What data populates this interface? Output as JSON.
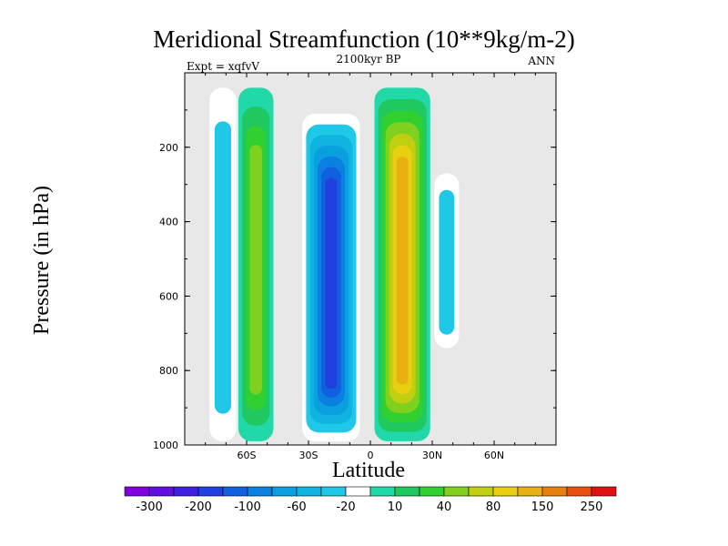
{
  "chart_data": {
    "type": "contour",
    "title": "Meridional Streamfunction (10**9kg/m-2)",
    "subtitle": "2100kyr BP",
    "left_label": "Expt = xqfvV",
    "right_label": "ANN",
    "xlabel": "Latitude",
    "ylabel": "Pressure (in hPa)",
    "xlim": [
      -90,
      90
    ],
    "ylim": [
      1000,
      0
    ],
    "xticks": [
      {
        "value": -60,
        "label": "60S"
      },
      {
        "value": -30,
        "label": "30S"
      },
      {
        "value": 0,
        "label": "0"
      },
      {
        "value": 30,
        "label": "30N"
      },
      {
        "value": 60,
        "label": "60N"
      }
    ],
    "yticks": [
      {
        "value": 200,
        "label": "200"
      },
      {
        "value": 400,
        "label": "400"
      },
      {
        "value": 600,
        "label": "600"
      },
      {
        "value": 800,
        "label": "800"
      },
      {
        "value": 1000,
        "label": "1000"
      }
    ],
    "background_color": "#e8e8e8",
    "colorbar": {
      "levels": [
        -300,
        -250,
        -200,
        -150,
        -100,
        -80,
        -60,
        -40,
        -20,
        -10,
        10,
        20,
        40,
        60,
        80,
        100,
        150,
        200,
        250,
        300
      ],
      "labels": [
        "-300",
        "-200",
        "-100",
        "-60",
        "-20",
        "10",
        "40",
        "80",
        "150",
        "250"
      ],
      "colors": [
        "#8000e0",
        "#6010e0",
        "#4020e0",
        "#2040e0",
        "#1060e0",
        "#0a80e0",
        "#0aa0e0",
        "#10b4e0",
        "#20c8e8",
        "#ffffff",
        "#20d8a8",
        "#20c860",
        "#30d030",
        "#80d020",
        "#c0d010",
        "#e8d010",
        "#e8b010",
        "#e88010",
        "#e85010",
        "#e01010"
      ]
    },
    "cells": [
      {
        "name": "southern-polar-negative-cell",
        "sign": "negative",
        "level": -20,
        "lat_range": [
          -78,
          -65
        ],
        "p_range": [
          40,
          990
        ]
      },
      {
        "name": "southern-ferrel-positive-cell",
        "sign": "positive",
        "level": 40,
        "lat_range": [
          -64,
          -47
        ],
        "p_range": [
          40,
          990
        ],
        "peak_level": 60
      },
      {
        "name": "southern-hadley-negative-cell",
        "sign": "negative",
        "level": -100,
        "lat_range": [
          -33,
          -5
        ],
        "p_range": [
          110,
          990
        ],
        "peak_level": -150
      },
      {
        "name": "northern-hadley-positive-cell",
        "sign": "positive",
        "level": 100,
        "lat_range": [
          2,
          29
        ],
        "p_range": [
          40,
          990
        ],
        "peak_level": 150
      },
      {
        "name": "northern-negative-cell",
        "sign": "negative",
        "level": -20,
        "lat_range": [
          31,
          43
        ],
        "p_range": [
          270,
          740
        ]
      }
    ]
  }
}
